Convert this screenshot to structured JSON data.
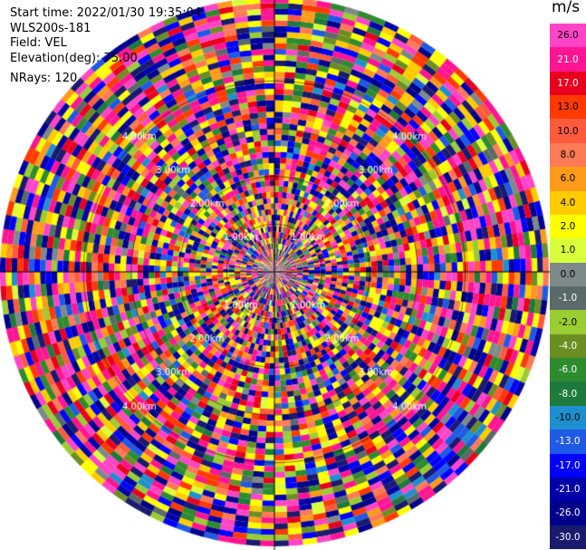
{
  "header": {
    "start_time": "Start time: 2022/01/30 19:35:04",
    "instrument": "WLS200s-181",
    "field": "Field: VEL",
    "elevation": "Elevation(deg): 75.00",
    "nrays": "NRays: 120"
  },
  "rings": [
    {
      "label": "1.00km",
      "km": 1
    },
    {
      "label": "2.00km",
      "km": 2
    },
    {
      "label": "3.00km",
      "km": 3
    },
    {
      "label": "4.00km",
      "km": 4
    }
  ],
  "n_rays": 120,
  "colorbar": {
    "unit": "m/s",
    "ticks": [
      "26.0",
      "21.0",
      "17.0",
      "13.0",
      "10.0",
      "8.0",
      "6.0",
      "4.0",
      "2.0",
      "1.0",
      "0.0",
      "-1.0",
      "-2.0",
      "-4.0",
      "-6.0",
      "-8.0",
      "-10.0",
      "-13.0",
      "-17.0",
      "-21.0",
      "-26.0",
      "-30.0"
    ],
    "colors": [
      "#ff44c8",
      "#ff1493",
      "#e8001e",
      "#ff3a00",
      "#ff5a3c",
      "#ff7a56",
      "#ff9a1a",
      "#ffcc00",
      "#ffff00",
      "#d9ff3a",
      "#7e8a8a",
      "#5a6a6a",
      "#9acd32",
      "#6b8e23",
      "#2e8b2e",
      "#1e7a3c",
      "#1e90d0",
      "#1e5ae6",
      "#0000ff",
      "#0000aa",
      "#00008b",
      "#1a1a6e"
    ]
  }
}
